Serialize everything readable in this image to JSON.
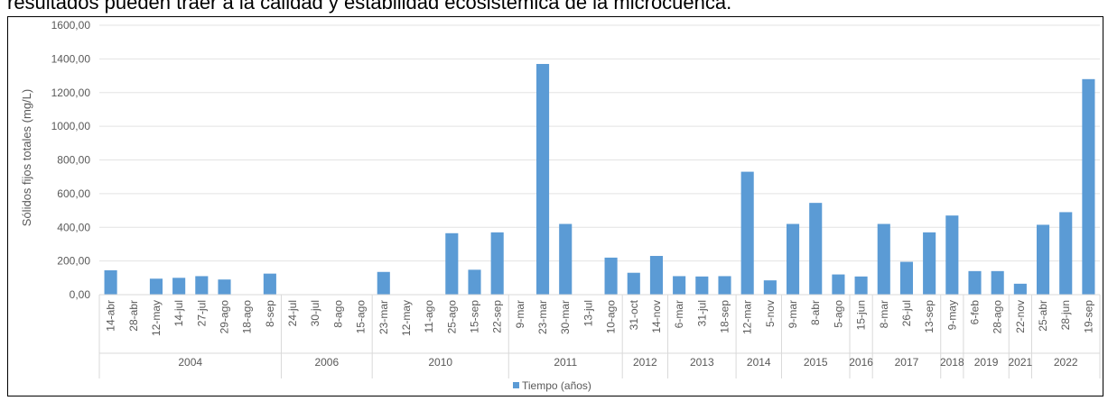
{
  "caption": "resultados pueden traer a la calidad y estabilidad ecosistémica de la microcuenca.",
  "chart_data": {
    "type": "bar",
    "ylabel": "Sólidos fijos totales (mg/L)",
    "legend": "Tiempo (años)",
    "color": "#5b9bd5",
    "grid": true,
    "ylim": [
      0,
      1600
    ],
    "yticks": [
      {
        "value": 0,
        "label": "0,00"
      },
      {
        "value": 200,
        "label": "200,00"
      },
      {
        "value": 400,
        "label": "400,00"
      },
      {
        "value": 600,
        "label": "600,00"
      },
      {
        "value": 800,
        "label": "800,00"
      },
      {
        "value": 1000,
        "label": "1000,00"
      },
      {
        "value": 1200,
        "label": "1200,00"
      },
      {
        "value": 1400,
        "label": "1400,00"
      },
      {
        "value": 1600,
        "label": "1600,00"
      }
    ],
    "groups": [
      {
        "name": "2004",
        "categories": [
          "14-abr",
          "28-abr",
          "12-may",
          "14-jul",
          "27-jul",
          "29-ago",
          "18-ago",
          "8-sep"
        ],
        "values": [
          145,
          null,
          95,
          100,
          110,
          90,
          null,
          125
        ]
      },
      {
        "name": "2006",
        "categories": [
          "24-jul",
          "30-jul",
          "8-ago",
          "15-ago"
        ],
        "values": [
          null,
          null,
          null,
          null
        ]
      },
      {
        "name": "2010",
        "categories": [
          "23-mar",
          "12-may",
          "11-ago",
          "25-ago",
          "15-sep",
          "22-sep"
        ],
        "values": [
          135,
          null,
          null,
          365,
          148,
          370
        ]
      },
      {
        "name": "2011",
        "categories": [
          "9-mar",
          "23-mar",
          "30-mar",
          "13-jul",
          "10-ago"
        ],
        "values": [
          null,
          1370,
          420,
          null,
          220
        ]
      },
      {
        "name": "2012",
        "categories": [
          "31-oct",
          "14-nov"
        ],
        "values": [
          130,
          230
        ]
      },
      {
        "name": "2013",
        "categories": [
          "6-mar",
          "31-jul",
          "18-sep"
        ],
        "values": [
          110,
          108,
          110
        ]
      },
      {
        "name": "2014",
        "categories": [
          "12-mar",
          "5-nov"
        ],
        "values": [
          730,
          85
        ]
      },
      {
        "name": "2015",
        "categories": [
          "9-mar",
          "8-abr",
          "5-ago"
        ],
        "values": [
          420,
          545,
          120
        ]
      },
      {
        "name": "2016",
        "categories": [
          "15-jun"
        ],
        "values": [
          108
        ]
      },
      {
        "name": "2017",
        "categories": [
          "8-mar",
          "26-jul",
          "13-sep"
        ],
        "values": [
          420,
          195,
          370
        ]
      },
      {
        "name": "2018",
        "categories": [
          "9-may"
        ],
        "values": [
          470
        ]
      },
      {
        "name": "2019",
        "categories": [
          "6-feb",
          "28-ago"
        ],
        "values": [
          140,
          140
        ]
      },
      {
        "name": "2021",
        "categories": [
          "22-nov"
        ],
        "values": [
          65
        ]
      },
      {
        "name": "2022",
        "categories": [
          "25-abr",
          "28-jun",
          "19-sep"
        ],
        "values": [
          415,
          490,
          1280
        ]
      }
    ]
  }
}
